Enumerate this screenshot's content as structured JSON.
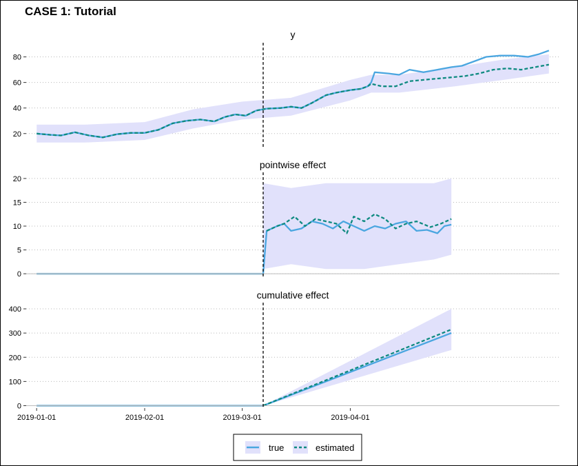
{
  "title": "CASE 1: Tutorial",
  "colors": {
    "true_line": "#4aa6e0",
    "estimated_line": "#0e8a80",
    "band": "#e1e1fb",
    "zero_line": "#7fb8d8",
    "grid": "#b8b8b8",
    "vline": "#000000"
  },
  "legend": {
    "placement": "bottom-center",
    "items": [
      {
        "label": "true",
        "style": "solid"
      },
      {
        "label": "estimated",
        "style": "dashed"
      }
    ]
  },
  "chart_data": [
    {
      "type": "line",
      "title": "y",
      "x_type": "date",
      "x_ticks": [
        "2019-01-01",
        "2019-02-01",
        "2019-03-01",
        "2019-04-01"
      ],
      "intervention_date": "2019-03-07",
      "ylim": [
        8,
        90
      ],
      "y_ticks": [
        20,
        40,
        60,
        80
      ],
      "grid": "horizontal dotted",
      "series": [
        {
          "name": "true",
          "points": [
            [
              "2019-01-01",
              20
            ],
            [
              "2019-01-05",
              19
            ],
            [
              "2019-01-08",
              18.5
            ],
            [
              "2019-01-12",
              21
            ],
            [
              "2019-01-16",
              18.5
            ],
            [
              "2019-01-20",
              17
            ],
            [
              "2019-01-24",
              19.5
            ],
            [
              "2019-01-28",
              20.5
            ],
            [
              "2019-02-01",
              20.5
            ],
            [
              "2019-02-05",
              23
            ],
            [
              "2019-02-09",
              28
            ],
            [
              "2019-02-13",
              30
            ],
            [
              "2019-02-17",
              31
            ],
            [
              "2019-02-21",
              29.5
            ],
            [
              "2019-02-24",
              33
            ],
            [
              "2019-02-27",
              35
            ],
            [
              "2019-03-02",
              34
            ],
            [
              "2019-03-05",
              38
            ],
            [
              "2019-03-08",
              39.5
            ],
            [
              "2019-03-12",
              40
            ],
            [
              "2019-03-15",
              41
            ],
            [
              "2019-03-18",
              40
            ],
            [
              "2019-03-21",
              44
            ],
            [
              "2019-03-25",
              50
            ],
            [
              "2019-03-28",
              52
            ],
            [
              "2019-04-01",
              54
            ],
            [
              "2019-04-04",
              55
            ],
            [
              "2019-04-06",
              57
            ],
            [
              "2019-04-07",
              60
            ],
            [
              "2019-04-08",
              68
            ],
            [
              "2019-04-12",
              67
            ],
            [
              "2019-04-15",
              66
            ],
            [
              "2019-04-18",
              70
            ],
            [
              "2019-04-22",
              68
            ],
            [
              "2019-04-26",
              70
            ],
            [
              "2019-04-30",
              72
            ],
            [
              "2019-05-03",
              73
            ],
            [
              "2019-05-06",
              76
            ],
            [
              "2019-05-10",
              80
            ],
            [
              "2019-05-14",
              81
            ],
            [
              "2019-05-18",
              81
            ],
            [
              "2019-05-22",
              80
            ],
            [
              "2019-05-25",
              82
            ],
            [
              "2019-05-28",
              85
            ]
          ]
        },
        {
          "name": "estimated",
          "points": [
            [
              "2019-01-01",
              20
            ],
            [
              "2019-01-05",
              19
            ],
            [
              "2019-01-08",
              18.5
            ],
            [
              "2019-01-12",
              21
            ],
            [
              "2019-01-16",
              18.5
            ],
            [
              "2019-01-20",
              17
            ],
            [
              "2019-01-24",
              19.5
            ],
            [
              "2019-01-28",
              20.5
            ],
            [
              "2019-02-01",
              20.5
            ],
            [
              "2019-02-05",
              23
            ],
            [
              "2019-02-09",
              28
            ],
            [
              "2019-02-13",
              30
            ],
            [
              "2019-02-17",
              31
            ],
            [
              "2019-02-21",
              29.5
            ],
            [
              "2019-02-24",
              33
            ],
            [
              "2019-02-27",
              35
            ],
            [
              "2019-03-02",
              34
            ],
            [
              "2019-03-05",
              38
            ],
            [
              "2019-03-08",
              39.5
            ],
            [
              "2019-03-12",
              40
            ],
            [
              "2019-03-15",
              41
            ],
            [
              "2019-03-18",
              40
            ],
            [
              "2019-03-21",
              44
            ],
            [
              "2019-03-25",
              50
            ],
            [
              "2019-03-28",
              52
            ],
            [
              "2019-04-01",
              54
            ],
            [
              "2019-04-04",
              55
            ],
            [
              "2019-04-06",
              57
            ],
            [
              "2019-04-07",
              59
            ],
            [
              "2019-04-10",
              57
            ],
            [
              "2019-04-14",
              57
            ],
            [
              "2019-04-18",
              61
            ],
            [
              "2019-04-22",
              62
            ],
            [
              "2019-04-26",
              63
            ],
            [
              "2019-04-30",
              64
            ],
            [
              "2019-05-04",
              65
            ],
            [
              "2019-05-08",
              67
            ],
            [
              "2019-05-12",
              70
            ],
            [
              "2019-05-16",
              71
            ],
            [
              "2019-05-20",
              70
            ],
            [
              "2019-05-24",
              72
            ],
            [
              "2019-05-28",
              74
            ]
          ]
        }
      ],
      "band": {
        "name": "true",
        "points": [
          [
            "2019-01-01",
            13,
            27
          ],
          [
            "2019-01-15",
            13,
            27
          ],
          [
            "2019-02-01",
            15,
            29
          ],
          [
            "2019-02-15",
            24,
            39
          ],
          [
            "2019-03-01",
            31,
            45
          ],
          [
            "2019-03-15",
            34,
            48
          ],
          [
            "2019-04-01",
            46,
            62
          ],
          [
            "2019-04-07",
            52,
            66
          ],
          [
            "2019-04-15",
            52,
            66
          ],
          [
            "2019-05-01",
            57,
            72
          ],
          [
            "2019-05-15",
            62,
            78
          ],
          [
            "2019-05-28",
            67,
            82
          ]
        ]
      }
    },
    {
      "type": "line",
      "title": "pointwise effect",
      "x_type": "date",
      "x_ticks": [
        "2019-01-01",
        "2019-02-01",
        "2019-03-01",
        "2019-04-01"
      ],
      "intervention_date": "2019-03-07",
      "ylim": [
        -1,
        21
      ],
      "y_ticks": [
        0,
        5,
        10,
        15,
        20
      ],
      "grid": "horizontal dotted",
      "series": [
        {
          "name": "true",
          "points": [
            [
              "2019-01-01",
              0
            ],
            [
              "2019-03-07",
              0
            ],
            [
              "2019-03-08",
              9
            ],
            [
              "2019-03-11",
              10
            ],
            [
              "2019-03-13",
              10.5
            ],
            [
              "2019-03-15",
              9
            ],
            [
              "2019-03-18",
              9.5
            ],
            [
              "2019-03-21",
              11
            ],
            [
              "2019-03-24",
              10.5
            ],
            [
              "2019-03-27",
              9.5
            ],
            [
              "2019-03-30",
              11
            ],
            [
              "2019-04-02",
              10
            ],
            [
              "2019-04-05",
              9
            ],
            [
              "2019-04-08",
              10
            ],
            [
              "2019-04-11",
              9.5
            ],
            [
              "2019-04-14",
              10.5
            ],
            [
              "2019-04-17",
              11
            ],
            [
              "2019-04-20",
              9
            ],
            [
              "2019-04-23",
              9.2
            ],
            [
              "2019-04-26",
              8.5
            ],
            [
              "2019-04-28",
              10
            ],
            [
              "2019-04-30",
              10.3
            ]
          ]
        },
        {
          "name": "estimated",
          "points": [
            [
              "2019-03-08",
              9
            ],
            [
              "2019-03-11",
              10
            ],
            [
              "2019-03-13",
              10.5
            ],
            [
              "2019-03-16",
              12
            ],
            [
              "2019-03-19",
              10
            ],
            [
              "2019-03-22",
              11.5
            ],
            [
              "2019-03-25",
              11
            ],
            [
              "2019-03-28",
              10.5
            ],
            [
              "2019-03-31",
              8.5
            ],
            [
              "2019-04-02",
              12
            ],
            [
              "2019-04-05",
              11
            ],
            [
              "2019-04-08",
              12.5
            ],
            [
              "2019-04-11",
              11.5
            ],
            [
              "2019-04-14",
              9.5
            ],
            [
              "2019-04-17",
              10.5
            ],
            [
              "2019-04-20",
              11
            ],
            [
              "2019-04-24",
              9.8
            ],
            [
              "2019-04-27",
              10.5
            ],
            [
              "2019-04-30",
              11.5
            ]
          ]
        }
      ],
      "band": {
        "name": "true",
        "points": [
          [
            "2019-03-07",
            1,
            19
          ],
          [
            "2019-03-15",
            2,
            18
          ],
          [
            "2019-03-25",
            1,
            19
          ],
          [
            "2019-04-05",
            1,
            19
          ],
          [
            "2019-04-15",
            2,
            19
          ],
          [
            "2019-04-25",
            3,
            19
          ],
          [
            "2019-04-30",
            4,
            20
          ]
        ]
      }
    },
    {
      "type": "line",
      "title": "cumulative effect",
      "x_type": "date",
      "x_ticks": [
        "2019-01-01",
        "2019-02-01",
        "2019-03-01",
        "2019-04-01"
      ],
      "intervention_date": "2019-03-07",
      "ylim": [
        -10,
        420
      ],
      "y_ticks": [
        0,
        100,
        200,
        300,
        400
      ],
      "grid": "horizontal dotted",
      "series": [
        {
          "name": "true",
          "points": [
            [
              "2019-01-01",
              0
            ],
            [
              "2019-03-07",
              0
            ],
            [
              "2019-04-30",
              300
            ]
          ]
        },
        {
          "name": "estimated",
          "points": [
            [
              "2019-03-07",
              0
            ],
            [
              "2019-04-30",
              315
            ]
          ]
        }
      ],
      "band": {
        "name": "true",
        "points": [
          [
            "2019-03-07",
            0,
            0
          ],
          [
            "2019-04-30",
            230,
            400
          ]
        ]
      }
    }
  ]
}
